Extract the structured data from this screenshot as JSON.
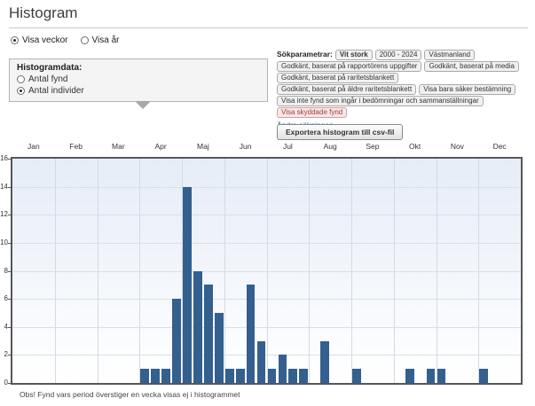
{
  "page": {
    "title": "Histogram"
  },
  "view_toggle": {
    "options": [
      {
        "label": "Visa veckor",
        "selected": true
      },
      {
        "label": "Visa år",
        "selected": false
      }
    ]
  },
  "histogramdata_panel": {
    "title": "Histogramdata:",
    "options": [
      {
        "label": "Antal fynd",
        "selected": false
      },
      {
        "label": "Antal individer",
        "selected": true
      }
    ]
  },
  "search_params": {
    "label": "Sökparametrar:",
    "tag_rows": [
      [
        {
          "label": "Vit stork",
          "bold": true
        },
        {
          "label": "2000 - 2024"
        },
        {
          "label": "Västmanland"
        }
      ],
      [
        {
          "label": "Godkänt, baserat på rapportörens uppgifter"
        },
        {
          "label": "Godkänt, baserat på media"
        }
      ],
      [
        {
          "label": "Godkänt, baserat på raritetsblankett"
        }
      ],
      [
        {
          "label": "Godkänt, baserat på äldre raritetsblankett"
        },
        {
          "label": "Visa bara säker bestämning"
        }
      ],
      [
        {
          "label": "Visa inte fynd som ingår i bedömningar och sammanställningar"
        }
      ],
      [
        {
          "label": "Visa skyddade fynd",
          "warning": true
        }
      ]
    ],
    "edit_link": "Ändra sökningen"
  },
  "export_button": {
    "label": "Exportera histogram till csv-fil"
  },
  "chart_data": {
    "type": "bar",
    "title": "",
    "xlabel": "",
    "ylabel": "",
    "months": [
      "Jan",
      "Feb",
      "Mar",
      "Apr",
      "Maj",
      "Jun",
      "Jul",
      "Aug",
      "Sep",
      "Okt",
      "Nov",
      "Dec"
    ],
    "weeks_per_month": 4,
    "values": [
      0,
      0,
      0,
      0,
      0,
      0,
      0,
      0,
      0,
      0,
      0,
      0,
      1,
      1,
      1,
      6,
      14,
      8,
      7,
      5,
      1,
      1,
      7,
      3,
      1,
      2,
      1,
      1,
      0,
      3,
      0,
      0,
      1,
      0,
      0,
      0,
      0,
      1,
      0,
      1,
      1,
      0,
      0,
      0,
      1,
      0,
      0,
      0
    ],
    "ylim": [
      0,
      16
    ],
    "ytick_step": 2,
    "grid": true,
    "legend": false,
    "bar_color": "#33608f"
  },
  "footnote": "Obs! Fynd vars period överstiger en vecka visas ej i histogrammet"
}
